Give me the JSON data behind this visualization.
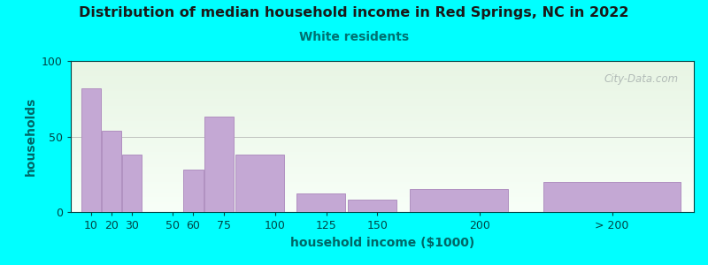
{
  "title": "Distribution of median household income in Red Springs, NC in 2022",
  "subtitle": "White residents",
  "xlabel": "household income ($1000)",
  "ylabel": "households",
  "background_outer": "#00FFFF",
  "background_inner_top_left": "#dff0e0",
  "background_inner_bottom_right": "#f8fff8",
  "bar_color": "#c4a8d4",
  "bar_edge_color": "#b090c0",
  "title_color": "#1a1a1a",
  "subtitle_color": "#007070",
  "axis_label_color": "#006666",
  "tick_color": "#004444",
  "categories": [
    "10",
    "20",
    "30",
    "50",
    "60",
    "75",
    "100",
    "125",
    "150",
    "200",
    "> 200"
  ],
  "values": [
    82,
    54,
    38,
    0,
    28,
    63,
    38,
    12,
    8,
    15,
    20
  ],
  "bar_lefts": [
    5,
    15,
    25,
    40,
    55,
    65,
    80,
    110,
    135,
    165,
    230
  ],
  "bar_widths": [
    10,
    10,
    10,
    10,
    10,
    15,
    25,
    25,
    25,
    50,
    70
  ],
  "x_tick_positions": [
    10,
    20,
    30,
    50,
    60,
    75,
    100,
    125,
    150,
    200,
    265
  ],
  "x_tick_labels": [
    "10",
    "20",
    "30",
    "50",
    "60",
    "75",
    "100",
    "125",
    "150",
    "200",
    "> 200"
  ],
  "xlim": [
    0,
    305
  ],
  "ylim": [
    0,
    100
  ],
  "yticks": [
    0,
    50,
    100
  ],
  "watermark": "City-Data.com"
}
